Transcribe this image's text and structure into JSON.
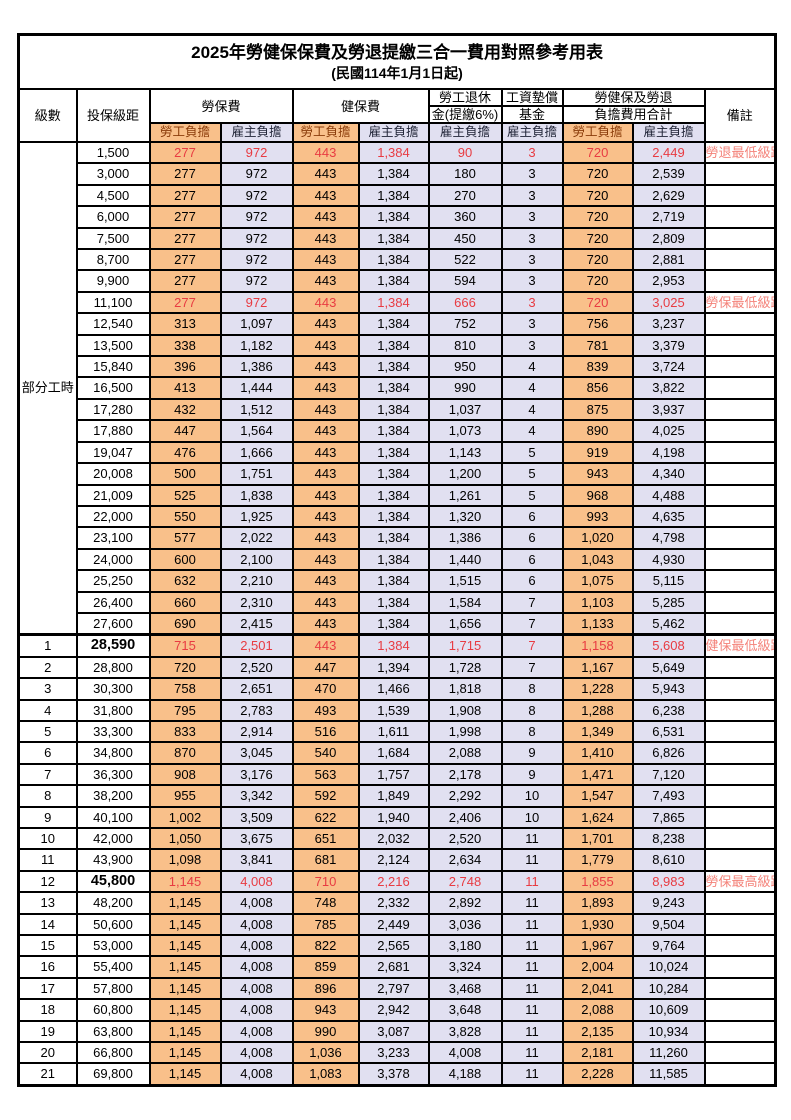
{
  "title": "2025年勞健保保費及勞退提繳三合一費用對照參考用表",
  "subtitle": "(民國114年1月1日起)",
  "header": {
    "level": "級數",
    "bracket": "投保級距",
    "labor_insurance": "勞保費",
    "health_insurance": "健保費",
    "pension_line1": "勞工退休",
    "pension_line2": "金(提繳6%)",
    "wage_fund_line1": "工資墊償",
    "wage_fund_line2": "基金",
    "total_line1": "勞健保及勞退",
    "total_line2": "負擔費用合計",
    "remark": "備註",
    "employee_share": "勞工負擔",
    "employer_share": "雇主負擔"
  },
  "part_time_label": "部分工時",
  "part_time_rowspan": 23,
  "colors": {
    "employee_col_bg": "#F9C08A",
    "employer_col_bg": "#E1E0F1",
    "highlight_value_text": "#E83B42",
    "remark_text": "#F4837A",
    "employee_header_text": "#8B3C0A",
    "border": "#000000"
  },
  "rows": [
    {
      "level": "",
      "bracket": "1,500",
      "values": [
        "277",
        "972",
        "443",
        "1,384",
        "90",
        "3",
        "720",
        "2,449"
      ],
      "remark": "勞退最低級距",
      "red": true,
      "bold": false,
      "section_start": false
    },
    {
      "level": "",
      "bracket": "3,000",
      "values": [
        "277",
        "972",
        "443",
        "1,384",
        "180",
        "3",
        "720",
        "2,539"
      ],
      "remark": "",
      "red": false,
      "bold": false,
      "section_start": false
    },
    {
      "level": "",
      "bracket": "4,500",
      "values": [
        "277",
        "972",
        "443",
        "1,384",
        "270",
        "3",
        "720",
        "2,629"
      ],
      "remark": "",
      "red": false,
      "bold": false,
      "section_start": false
    },
    {
      "level": "",
      "bracket": "6,000",
      "values": [
        "277",
        "972",
        "443",
        "1,384",
        "360",
        "3",
        "720",
        "2,719"
      ],
      "remark": "",
      "red": false,
      "bold": false,
      "section_start": false
    },
    {
      "level": "",
      "bracket": "7,500",
      "values": [
        "277",
        "972",
        "443",
        "1,384",
        "450",
        "3",
        "720",
        "2,809"
      ],
      "remark": "",
      "red": false,
      "bold": false,
      "section_start": false
    },
    {
      "level": "",
      "bracket": "8,700",
      "values": [
        "277",
        "972",
        "443",
        "1,384",
        "522",
        "3",
        "720",
        "2,881"
      ],
      "remark": "",
      "red": false,
      "bold": false,
      "section_start": false
    },
    {
      "level": "",
      "bracket": "9,900",
      "values": [
        "277",
        "972",
        "443",
        "1,384",
        "594",
        "3",
        "720",
        "2,953"
      ],
      "remark": "",
      "red": false,
      "bold": false,
      "section_start": false
    },
    {
      "level": "",
      "bracket": "11,100",
      "values": [
        "277",
        "972",
        "443",
        "1,384",
        "666",
        "3",
        "720",
        "3,025"
      ],
      "remark": "勞保最低級距",
      "red": true,
      "bold": false,
      "section_start": false
    },
    {
      "level": "",
      "bracket": "12,540",
      "values": [
        "313",
        "1,097",
        "443",
        "1,384",
        "752",
        "3",
        "756",
        "3,237"
      ],
      "remark": "",
      "red": false,
      "bold": false,
      "section_start": false
    },
    {
      "level": "",
      "bracket": "13,500",
      "values": [
        "338",
        "1,182",
        "443",
        "1,384",
        "810",
        "3",
        "781",
        "3,379"
      ],
      "remark": "",
      "red": false,
      "bold": false,
      "section_start": false
    },
    {
      "level": "",
      "bracket": "15,840",
      "values": [
        "396",
        "1,386",
        "443",
        "1,384",
        "950",
        "4",
        "839",
        "3,724"
      ],
      "remark": "",
      "red": false,
      "bold": false,
      "section_start": false
    },
    {
      "level": "",
      "bracket": "16,500",
      "values": [
        "413",
        "1,444",
        "443",
        "1,384",
        "990",
        "4",
        "856",
        "3,822"
      ],
      "remark": "",
      "red": false,
      "bold": false,
      "section_start": false
    },
    {
      "level": "",
      "bracket": "17,280",
      "values": [
        "432",
        "1,512",
        "443",
        "1,384",
        "1,037",
        "4",
        "875",
        "3,937"
      ],
      "remark": "",
      "red": false,
      "bold": false,
      "section_start": false
    },
    {
      "level": "",
      "bracket": "17,880",
      "values": [
        "447",
        "1,564",
        "443",
        "1,384",
        "1,073",
        "4",
        "890",
        "4,025"
      ],
      "remark": "",
      "red": false,
      "bold": false,
      "section_start": false
    },
    {
      "level": "",
      "bracket": "19,047",
      "values": [
        "476",
        "1,666",
        "443",
        "1,384",
        "1,143",
        "5",
        "919",
        "4,198"
      ],
      "remark": "",
      "red": false,
      "bold": false,
      "section_start": false
    },
    {
      "level": "",
      "bracket": "20,008",
      "values": [
        "500",
        "1,751",
        "443",
        "1,384",
        "1,200",
        "5",
        "943",
        "4,340"
      ],
      "remark": "",
      "red": false,
      "bold": false,
      "section_start": false
    },
    {
      "level": "",
      "bracket": "21,009",
      "values": [
        "525",
        "1,838",
        "443",
        "1,384",
        "1,261",
        "5",
        "968",
        "4,488"
      ],
      "remark": "",
      "red": false,
      "bold": false,
      "section_start": false
    },
    {
      "level": "",
      "bracket": "22,000",
      "values": [
        "550",
        "1,925",
        "443",
        "1,384",
        "1,320",
        "6",
        "993",
        "4,635"
      ],
      "remark": "",
      "red": false,
      "bold": false,
      "section_start": false
    },
    {
      "level": "",
      "bracket": "23,100",
      "values": [
        "577",
        "2,022",
        "443",
        "1,384",
        "1,386",
        "6",
        "1,020",
        "4,798"
      ],
      "remark": "",
      "red": false,
      "bold": false,
      "section_start": false
    },
    {
      "level": "",
      "bracket": "24,000",
      "values": [
        "600",
        "2,100",
        "443",
        "1,384",
        "1,440",
        "6",
        "1,043",
        "4,930"
      ],
      "remark": "",
      "red": false,
      "bold": false,
      "section_start": false
    },
    {
      "level": "",
      "bracket": "25,250",
      "values": [
        "632",
        "2,210",
        "443",
        "1,384",
        "1,515",
        "6",
        "1,075",
        "5,115"
      ],
      "remark": "",
      "red": false,
      "bold": false,
      "section_start": false
    },
    {
      "level": "",
      "bracket": "26,400",
      "values": [
        "660",
        "2,310",
        "443",
        "1,384",
        "1,584",
        "7",
        "1,103",
        "5,285"
      ],
      "remark": "",
      "red": false,
      "bold": false,
      "section_start": false
    },
    {
      "level": "",
      "bracket": "27,600",
      "values": [
        "690",
        "2,415",
        "443",
        "1,384",
        "1,656",
        "7",
        "1,133",
        "5,462"
      ],
      "remark": "",
      "red": false,
      "bold": false,
      "section_start": false
    },
    {
      "level": "1",
      "bracket": "28,590",
      "values": [
        "715",
        "2,501",
        "443",
        "1,384",
        "1,715",
        "7",
        "1,158",
        "5,608"
      ],
      "remark": "健保最低級距",
      "red": true,
      "bold": true,
      "section_start": true
    },
    {
      "level": "2",
      "bracket": "28,800",
      "values": [
        "720",
        "2,520",
        "447",
        "1,394",
        "1,728",
        "7",
        "1,167",
        "5,649"
      ],
      "remark": "",
      "red": false,
      "bold": false,
      "section_start": false
    },
    {
      "level": "3",
      "bracket": "30,300",
      "values": [
        "758",
        "2,651",
        "470",
        "1,466",
        "1,818",
        "8",
        "1,228",
        "5,943"
      ],
      "remark": "",
      "red": false,
      "bold": false,
      "section_start": false
    },
    {
      "level": "4",
      "bracket": "31,800",
      "values": [
        "795",
        "2,783",
        "493",
        "1,539",
        "1,908",
        "8",
        "1,288",
        "6,238"
      ],
      "remark": "",
      "red": false,
      "bold": false,
      "section_start": false
    },
    {
      "level": "5",
      "bracket": "33,300",
      "values": [
        "833",
        "2,914",
        "516",
        "1,611",
        "1,998",
        "8",
        "1,349",
        "6,531"
      ],
      "remark": "",
      "red": false,
      "bold": false,
      "section_start": false
    },
    {
      "level": "6",
      "bracket": "34,800",
      "values": [
        "870",
        "3,045",
        "540",
        "1,684",
        "2,088",
        "9",
        "1,410",
        "6,826"
      ],
      "remark": "",
      "red": false,
      "bold": false,
      "section_start": false
    },
    {
      "level": "7",
      "bracket": "36,300",
      "values": [
        "908",
        "3,176",
        "563",
        "1,757",
        "2,178",
        "9",
        "1,471",
        "7,120"
      ],
      "remark": "",
      "red": false,
      "bold": false,
      "section_start": false
    },
    {
      "level": "8",
      "bracket": "38,200",
      "values": [
        "955",
        "3,342",
        "592",
        "1,849",
        "2,292",
        "10",
        "1,547",
        "7,493"
      ],
      "remark": "",
      "red": false,
      "bold": false,
      "section_start": false
    },
    {
      "level": "9",
      "bracket": "40,100",
      "values": [
        "1,002",
        "3,509",
        "622",
        "1,940",
        "2,406",
        "10",
        "1,624",
        "7,865"
      ],
      "remark": "",
      "red": false,
      "bold": false,
      "section_start": false
    },
    {
      "level": "10",
      "bracket": "42,000",
      "values": [
        "1,050",
        "3,675",
        "651",
        "2,032",
        "2,520",
        "11",
        "1,701",
        "8,238"
      ],
      "remark": "",
      "red": false,
      "bold": false,
      "section_start": false
    },
    {
      "level": "11",
      "bracket": "43,900",
      "values": [
        "1,098",
        "3,841",
        "681",
        "2,124",
        "2,634",
        "11",
        "1,779",
        "8,610"
      ],
      "remark": "",
      "red": false,
      "bold": false,
      "section_start": false
    },
    {
      "level": "12",
      "bracket": "45,800",
      "values": [
        "1,145",
        "4,008",
        "710",
        "2,216",
        "2,748",
        "11",
        "1,855",
        "8,983"
      ],
      "remark": "勞保最高級距",
      "red": true,
      "bold": true,
      "section_start": false
    },
    {
      "level": "13",
      "bracket": "48,200",
      "values": [
        "1,145",
        "4,008",
        "748",
        "2,332",
        "2,892",
        "11",
        "1,893",
        "9,243"
      ],
      "remark": "",
      "red": false,
      "bold": false,
      "section_start": false
    },
    {
      "level": "14",
      "bracket": "50,600",
      "values": [
        "1,145",
        "4,008",
        "785",
        "2,449",
        "3,036",
        "11",
        "1,930",
        "9,504"
      ],
      "remark": "",
      "red": false,
      "bold": false,
      "section_start": false
    },
    {
      "level": "15",
      "bracket": "53,000",
      "values": [
        "1,145",
        "4,008",
        "822",
        "2,565",
        "3,180",
        "11",
        "1,967",
        "9,764"
      ],
      "remark": "",
      "red": false,
      "bold": false,
      "section_start": false
    },
    {
      "level": "16",
      "bracket": "55,400",
      "values": [
        "1,145",
        "4,008",
        "859",
        "2,681",
        "3,324",
        "11",
        "2,004",
        "10,024"
      ],
      "remark": "",
      "red": false,
      "bold": false,
      "section_start": false
    },
    {
      "level": "17",
      "bracket": "57,800",
      "values": [
        "1,145",
        "4,008",
        "896",
        "2,797",
        "3,468",
        "11",
        "2,041",
        "10,284"
      ],
      "remark": "",
      "red": false,
      "bold": false,
      "section_start": false
    },
    {
      "level": "18",
      "bracket": "60,800",
      "values": [
        "1,145",
        "4,008",
        "943",
        "2,942",
        "3,648",
        "11",
        "2,088",
        "10,609"
      ],
      "remark": "",
      "red": false,
      "bold": false,
      "section_start": false
    },
    {
      "level": "19",
      "bracket": "63,800",
      "values": [
        "1,145",
        "4,008",
        "990",
        "3,087",
        "3,828",
        "11",
        "2,135",
        "10,934"
      ],
      "remark": "",
      "red": false,
      "bold": false,
      "section_start": false
    },
    {
      "level": "20",
      "bracket": "66,800",
      "values": [
        "1,145",
        "4,008",
        "1,036",
        "3,233",
        "4,008",
        "11",
        "2,181",
        "11,260"
      ],
      "remark": "",
      "red": false,
      "bold": false,
      "section_start": false
    },
    {
      "level": "21",
      "bracket": "69,800",
      "values": [
        "1,145",
        "4,008",
        "1,083",
        "3,378",
        "4,188",
        "11",
        "2,228",
        "11,585"
      ],
      "remark": "",
      "red": false,
      "bold": false,
      "section_start": false
    }
  ]
}
